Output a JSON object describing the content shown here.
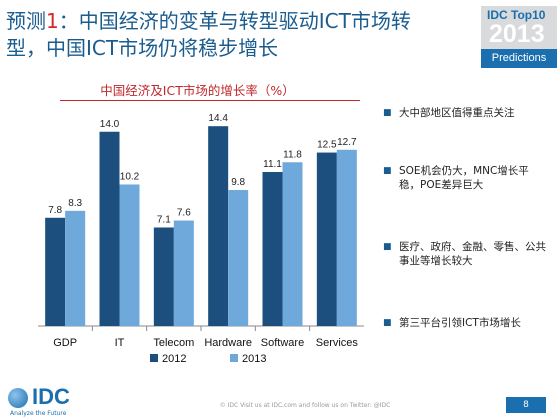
{
  "slide": {
    "title_prefix": "预测",
    "title_number": "1",
    "title_rest": "：中国经济的变革与转型驱动ICT市场转型，中国ICT市场仍将稳步增长",
    "badge_line1": "IDC Top10",
    "badge_year": "2013",
    "badge_line2": "Predictions",
    "footer": "© IDC   Visit us at IDC.com and follow us on Twitter: @IDC",
    "page_number": "8",
    "logo_text": "IDC",
    "logo_tagline": "Analyze the Future"
  },
  "bullets": [
    "大中部地区值得重点关注",
    "SOE机会仍大，MNC增长平稳，POE差异巨大",
    "医疗、政府、金融、零售、公共事业等增长较大",
    "第三平台引领ICT市场增长"
  ],
  "chart_data": {
    "type": "bar",
    "title": "中国经济及ICT市场的增长率（%）",
    "categories": [
      "GDP",
      "IT",
      "Telecom",
      "Hardware",
      "Software",
      "Services"
    ],
    "series": [
      {
        "name": "2012",
        "values": [
          7.8,
          14.0,
          7.1,
          14.4,
          11.1,
          12.5
        ],
        "labels": [
          "7.8",
          "14.0",
          "7.1",
          "14.4",
          "11.1",
          "12.5"
        ],
        "color": "#1c4e7e"
      },
      {
        "name": "2013",
        "values": [
          8.3,
          10.2,
          7.6,
          9.8,
          11.8,
          12.7
        ],
        "labels": [
          "8.3",
          "10.2",
          "7.6",
          "9.8",
          "11.8",
          "12.7"
        ],
        "color": "#6fa9dc"
      }
    ],
    "ylim": [
      0,
      16
    ],
    "grid": false,
    "legend": "bottom"
  }
}
